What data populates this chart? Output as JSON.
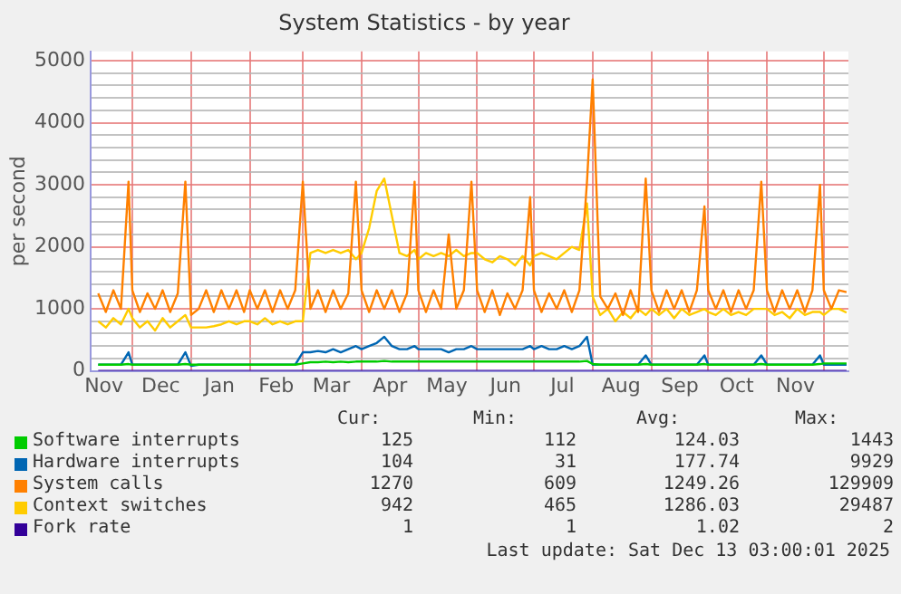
{
  "chart_data": {
    "type": "line",
    "title": "System Statistics - by year",
    "ylabel": "per second",
    "xlim": [
      "2024-11-09",
      "2025-12-14"
    ],
    "ylim": [
      0,
      5150
    ],
    "xticks": [
      {
        "value": "2024-11-16",
        "label": "Nov"
      },
      {
        "value": "2024-12-01",
        "label": null
      },
      {
        "value": "2024-12-16",
        "label": "Dec"
      },
      {
        "value": "2025-01-01",
        "label": null
      },
      {
        "value": "2025-01-16",
        "label": "Jan"
      },
      {
        "value": "2025-02-01",
        "label": null
      },
      {
        "value": "2025-02-15",
        "label": "Feb"
      },
      {
        "value": "2025-03-01",
        "label": null
      },
      {
        "value": "2025-03-16",
        "label": "Mar"
      },
      {
        "value": "2025-04-01",
        "label": null
      },
      {
        "value": "2025-04-16",
        "label": "Apr"
      },
      {
        "value": "2025-05-01",
        "label": null
      },
      {
        "value": "2025-05-16",
        "label": "May"
      },
      {
        "value": "2025-06-01",
        "label": null
      },
      {
        "value": "2025-06-16",
        "label": "Jun"
      },
      {
        "value": "2025-07-01",
        "label": null
      },
      {
        "value": "2025-07-16",
        "label": "Jul"
      },
      {
        "value": "2025-08-01",
        "label": null
      },
      {
        "value": "2025-08-16",
        "label": "Aug"
      },
      {
        "value": "2025-09-01",
        "label": null
      },
      {
        "value": "2025-09-16",
        "label": "Sep"
      },
      {
        "value": "2025-10-01",
        "label": null
      },
      {
        "value": "2025-10-16",
        "label": "Oct"
      },
      {
        "value": "2025-11-01",
        "label": null
      },
      {
        "value": "2025-11-16",
        "label": "Nov"
      },
      {
        "value": "2025-12-01",
        "label": null
      }
    ],
    "yticks": [
      0,
      {
        "value": 200,
        "label": null
      },
      {
        "value": 400,
        "label": null
      },
      {
        "value": 600,
        "label": null
      },
      {
        "value": 800,
        "label": null
      },
      1000,
      {
        "value": 1200,
        "label": null
      },
      {
        "value": 1400,
        "label": null
      },
      {
        "value": 1600,
        "label": null
      },
      {
        "value": 1800,
        "label": null
      },
      2000,
      {
        "value": 2200,
        "label": null
      },
      {
        "value": 2400,
        "label": null
      },
      {
        "value": 2600,
        "label": null
      },
      {
        "value": 2800,
        "label": null
      },
      3000,
      {
        "value": 3200,
        "label": null
      },
      {
        "value": 3400,
        "label": null
      },
      {
        "value": 3600,
        "label": null
      },
      {
        "value": 3800,
        "label": null
      },
      4000,
      {
        "value": 4200,
        "label": null
      },
      {
        "value": 4400,
        "label": null
      },
      {
        "value": 4600,
        "label": null
      },
      {
        "value": 4800,
        "label": null
      },
      5000
    ],
    "grid": true,
    "marker": "none",
    "legend": "bottom",
    "x": [
      "2024-11-13",
      "2024-11-17",
      "2024-11-21",
      "2024-11-25",
      "2024-11-29",
      "2024-12-01",
      "2024-12-05",
      "2024-12-09",
      "2024-12-13",
      "2024-12-17",
      "2024-12-21",
      "2024-12-25",
      "2024-12-29",
      "2025-01-01",
      "2025-01-05",
      "2025-01-09",
      "2025-01-13",
      "2025-01-17",
      "2025-01-21",
      "2025-01-25",
      "2025-01-29",
      "2025-02-01",
      "2025-02-05",
      "2025-02-09",
      "2025-02-13",
      "2025-02-17",
      "2025-02-21",
      "2025-02-25",
      "2025-03-01",
      "2025-03-05",
      "2025-03-09",
      "2025-03-13",
      "2025-03-17",
      "2025-03-21",
      "2025-03-25",
      "2025-03-29",
      "2025-04-01",
      "2025-04-05",
      "2025-04-09",
      "2025-04-13",
      "2025-04-17",
      "2025-04-21",
      "2025-04-25",
      "2025-04-29",
      "2025-05-01",
      "2025-05-05",
      "2025-05-09",
      "2025-05-13",
      "2025-05-17",
      "2025-05-21",
      "2025-05-25",
      "2025-05-29",
      "2025-06-01",
      "2025-06-05",
      "2025-06-09",
      "2025-06-13",
      "2025-06-17",
      "2025-06-21",
      "2025-06-25",
      "2025-06-29",
      "2025-07-01",
      "2025-07-05",
      "2025-07-09",
      "2025-07-13",
      "2025-07-17",
      "2025-07-21",
      "2025-07-25",
      "2025-07-29",
      "2025-08-01",
      "2025-08-05",
      "2025-08-09",
      "2025-08-13",
      "2025-08-17",
      "2025-08-21",
      "2025-08-25",
      "2025-08-29",
      "2025-09-01",
      "2025-09-05",
      "2025-09-09",
      "2025-09-13",
      "2025-09-17",
      "2025-09-21",
      "2025-09-25",
      "2025-09-29",
      "2025-10-01",
      "2025-10-05",
      "2025-10-09",
      "2025-10-13",
      "2025-10-17",
      "2025-10-21",
      "2025-10-25",
      "2025-10-29",
      "2025-11-01",
      "2025-11-05",
      "2025-11-09",
      "2025-11-13",
      "2025-11-17",
      "2025-11-21",
      "2025-11-25",
      "2025-11-29",
      "2025-12-01",
      "2025-12-05",
      "2025-12-09",
      "2025-12-13"
    ],
    "series": [
      {
        "name": "Software interrupts",
        "color": "#00cc00",
        "values": [
          100,
          100,
          100,
          100,
          110,
          100,
          100,
          100,
          100,
          100,
          100,
          100,
          110,
          100,
          100,
          100,
          100,
          100,
          100,
          100,
          100,
          100,
          100,
          100,
          100,
          100,
          100,
          100,
          120,
          140,
          140,
          150,
          140,
          150,
          140,
          150,
          150,
          150,
          150,
          160,
          150,
          150,
          150,
          150,
          150,
          150,
          150,
          150,
          150,
          150,
          150,
          150,
          150,
          150,
          150,
          150,
          150,
          150,
          150,
          150,
          150,
          150,
          150,
          150,
          150,
          150,
          150,
          160,
          110,
          100,
          100,
          100,
          100,
          100,
          100,
          110,
          100,
          100,
          100,
          100,
          100,
          100,
          100,
          110,
          100,
          100,
          100,
          100,
          100,
          100,
          100,
          110,
          100,
          100,
          100,
          100,
          100,
          100,
          100,
          110,
          120,
          120,
          120,
          120
        ]
      },
      {
        "name": "Hardware interrupts",
        "color": "#0066b3",
        "values": [
          100,
          100,
          100,
          100,
          300,
          100,
          100,
          100,
          100,
          100,
          100,
          100,
          300,
          80,
          100,
          100,
          100,
          100,
          100,
          100,
          100,
          100,
          100,
          100,
          100,
          100,
          100,
          100,
          300,
          300,
          320,
          300,
          350,
          300,
          350,
          400,
          350,
          400,
          450,
          550,
          400,
          350,
          350,
          400,
          350,
          350,
          350,
          350,
          300,
          350,
          350,
          400,
          350,
          350,
          350,
          350,
          350,
          350,
          350,
          400,
          350,
          400,
          350,
          350,
          400,
          350,
          400,
          550,
          100,
          100,
          100,
          100,
          100,
          100,
          100,
          250,
          100,
          100,
          100,
          100,
          100,
          100,
          100,
          250,
          100,
          100,
          100,
          100,
          100,
          100,
          100,
          250,
          100,
          100,
          100,
          100,
          100,
          100,
          100,
          250,
          100,
          100,
          100,
          100
        ]
      },
      {
        "name": "System calls",
        "color": "#ff8000",
        "values": [
          1250,
          950,
          1300,
          1000,
          3050,
          1300,
          950,
          1250,
          1000,
          1300,
          950,
          1250,
          3050,
          900,
          1000,
          1300,
          950,
          1300,
          1000,
          1300,
          950,
          1300,
          1000,
          1300,
          950,
          1300,
          1000,
          1300,
          3050,
          1000,
          1300,
          950,
          1300,
          1000,
          1250,
          3050,
          1300,
          950,
          1300,
          1000,
          1300,
          950,
          1250,
          3050,
          1300,
          950,
          1300,
          1000,
          2200,
          1000,
          1300,
          3050,
          1300,
          950,
          1300,
          900,
          1250,
          1000,
          1300,
          2800,
          1300,
          950,
          1250,
          1000,
          1300,
          950,
          1300,
          3050,
          4700,
          1200,
          1000,
          1250,
          900,
          1300,
          950,
          3100,
          1300,
          950,
          1300,
          1000,
          1300,
          950,
          1300,
          2650,
          1300,
          1000,
          1300,
          950,
          1300,
          1000,
          1300,
          3050,
          1300,
          950,
          1300,
          1000,
          1300,
          950,
          1300,
          3000,
          1300,
          1000,
          1300,
          1270
        ]
      },
      {
        "name": "Context switches",
        "color": "#ffcc00",
        "values": [
          800,
          700,
          850,
          750,
          1000,
          850,
          700,
          800,
          650,
          850,
          700,
          800,
          900,
          700,
          700,
          700,
          720,
          750,
          800,
          750,
          800,
          800,
          750,
          850,
          750,
          800,
          750,
          800,
          800,
          1900,
          1950,
          1900,
          1950,
          1900,
          1950,
          1800,
          1900,
          2300,
          2900,
          3100,
          2500,
          1900,
          1850,
          1950,
          1800,
          1900,
          1850,
          1900,
          1850,
          1950,
          1850,
          1900,
          1900,
          1800,
          1750,
          1850,
          1800,
          1700,
          1850,
          1700,
          1850,
          1900,
          1850,
          1800,
          1900,
          2000,
          1950,
          2700,
          1200,
          900,
          1000,
          800,
          950,
          850,
          1000,
          900,
          1000,
          900,
          1000,
          850,
          1000,
          900,
          950,
          1000,
          950,
          900,
          1000,
          900,
          950,
          900,
          1000,
          1000,
          1000,
          900,
          950,
          850,
          1000,
          900,
          950,
          950,
          900,
          1000,
          1000,
          940
        ]
      },
      {
        "name": "Fork rate",
        "color": "#330099",
        "values": [
          0,
          0,
          0,
          0,
          0,
          0,
          0,
          0,
          0,
          0,
          0,
          0,
          0,
          0,
          0,
          0,
          0,
          0,
          0,
          0,
          0,
          0,
          0,
          0,
          0,
          0,
          0,
          0,
          0,
          0,
          0,
          0,
          0,
          0,
          0,
          0,
          0,
          0,
          0,
          0,
          0,
          0,
          0,
          0,
          0,
          0,
          0,
          0,
          0,
          0,
          0,
          0,
          0,
          0,
          0,
          0,
          0,
          0,
          0,
          0,
          0,
          0,
          0,
          0,
          0,
          0,
          0,
          0,
          0,
          0,
          0,
          0,
          0,
          0,
          0,
          0,
          0,
          0,
          0,
          0,
          0,
          0,
          0,
          0,
          0,
          0,
          0,
          0,
          0,
          0,
          0,
          0,
          0,
          0,
          0,
          0,
          0,
          0,
          0,
          0,
          0,
          0,
          0,
          0
        ]
      }
    ],
    "annotations": [
      "Cur:",
      "Min:",
      "Avg:",
      "Max:",
      "125",
      "112",
      "124.03",
      "1443",
      "104",
      "31",
      "177.74",
      "9929",
      "1270",
      "609",
      "1249.26",
      "129909",
      "942",
      "465",
      "1286.03",
      "29487",
      "1",
      "1",
      "1.02",
      "2",
      "Last update: Sat Dec 13 03:00:01 2025"
    ]
  }
}
